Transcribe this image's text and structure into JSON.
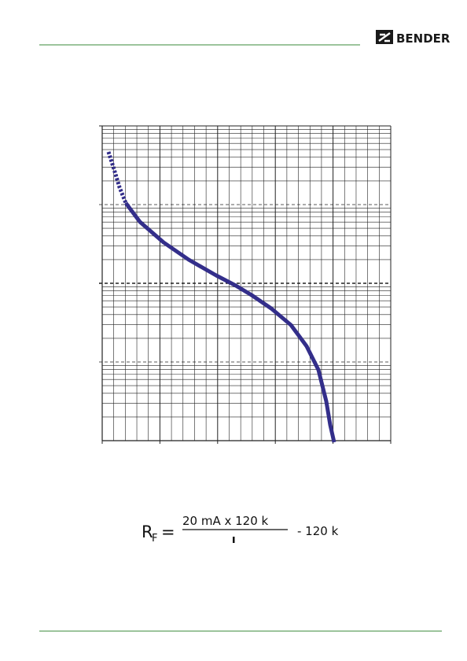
{
  "header": {
    "logo": "BENDER"
  },
  "formula": {
    "symbol": "R",
    "subscript": "F",
    "equals": "=",
    "numerator": "20 mA x 120 k",
    "minus": "- 120 k"
  }
}
